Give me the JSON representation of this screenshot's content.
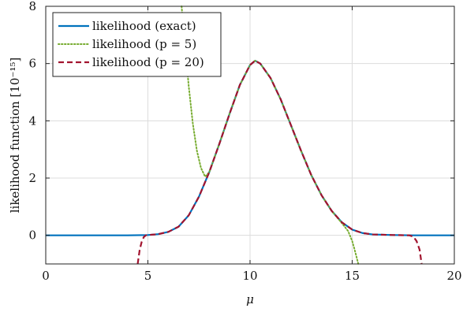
{
  "chart_data": {
    "type": "line",
    "xlabel": "μ",
    "ylabel": "likelihood function [10⁻¹⁵]",
    "xlim": [
      0,
      20
    ],
    "ylim": [
      -1,
      8
    ],
    "xticks": [
      0,
      5,
      10,
      15,
      20
    ],
    "yticks": [
      0,
      2,
      4,
      6,
      8
    ],
    "grid": true,
    "legend_position": "top-left",
    "series": [
      {
        "name": "likelihood (exact)",
        "color": "#0072BD",
        "style": "solid",
        "x": [
          0,
          4,
          5,
          5.5,
          6,
          6.5,
          7,
          7.5,
          8,
          8.5,
          9,
          9.5,
          10,
          10.25,
          10.5,
          11,
          11.5,
          12,
          12.5,
          13,
          13.5,
          14,
          14.5,
          15,
          15.5,
          16,
          17,
          18,
          20
        ],
        "y": [
          0,
          0,
          0.01,
          0.04,
          0.12,
          0.3,
          0.7,
          1.35,
          2.2,
          3.2,
          4.25,
          5.25,
          5.95,
          6.1,
          6.0,
          5.5,
          4.75,
          3.85,
          2.95,
          2.1,
          1.4,
          0.85,
          0.45,
          0.2,
          0.08,
          0.03,
          0.01,
          0,
          0
        ]
      },
      {
        "name": "likelihood (p = 5)",
        "color": "#77AC30",
        "style": "dotted",
        "x": [
          6.65,
          6.8,
          7.0,
          7.2,
          7.4,
          7.6,
          7.8,
          8.0,
          8.5,
          9,
          9.5,
          10,
          10.25,
          10.5,
          11,
          11.5,
          12,
          12.5,
          13,
          13.5,
          14,
          14.5,
          14.8,
          15.0,
          15.1,
          15.2,
          15.3
        ],
        "y": [
          8.0,
          6.8,
          5.2,
          3.9,
          2.95,
          2.35,
          2.05,
          2.2,
          3.2,
          4.25,
          5.25,
          5.95,
          6.1,
          6.0,
          5.5,
          4.75,
          3.85,
          2.95,
          2.1,
          1.4,
          0.85,
          0.42,
          0.15,
          -0.2,
          -0.45,
          -0.72,
          -1.0
        ]
      },
      {
        "name": "likelihood (p = 20)",
        "color": "#A2142F",
        "style": "dashed",
        "x": [
          4.5,
          4.55,
          4.6,
          4.7,
          4.8,
          4.9,
          5.0,
          5.5,
          6,
          6.5,
          7,
          7.5,
          8,
          8.5,
          9,
          9.5,
          10,
          10.25,
          10.5,
          11,
          11.5,
          12,
          12.5,
          13,
          13.5,
          14,
          14.5,
          15,
          15.5,
          16,
          17,
          17.8,
          18.0,
          18.15,
          18.3,
          18.4
        ],
        "y": [
          -1.0,
          -0.75,
          -0.5,
          -0.22,
          -0.06,
          0.0,
          0.01,
          0.04,
          0.12,
          0.3,
          0.7,
          1.35,
          2.2,
          3.2,
          4.25,
          5.25,
          5.95,
          6.1,
          6.0,
          5.5,
          4.75,
          3.85,
          2.95,
          2.1,
          1.4,
          0.85,
          0.45,
          0.2,
          0.08,
          0.03,
          0.01,
          0.0,
          -0.05,
          -0.2,
          -0.5,
          -1.0
        ]
      }
    ]
  },
  "legend": {
    "items": [
      {
        "label": "likelihood (exact)"
      },
      {
        "label": "likelihood (p = 5)"
      },
      {
        "label": "likelihood (p = 20)"
      }
    ]
  }
}
